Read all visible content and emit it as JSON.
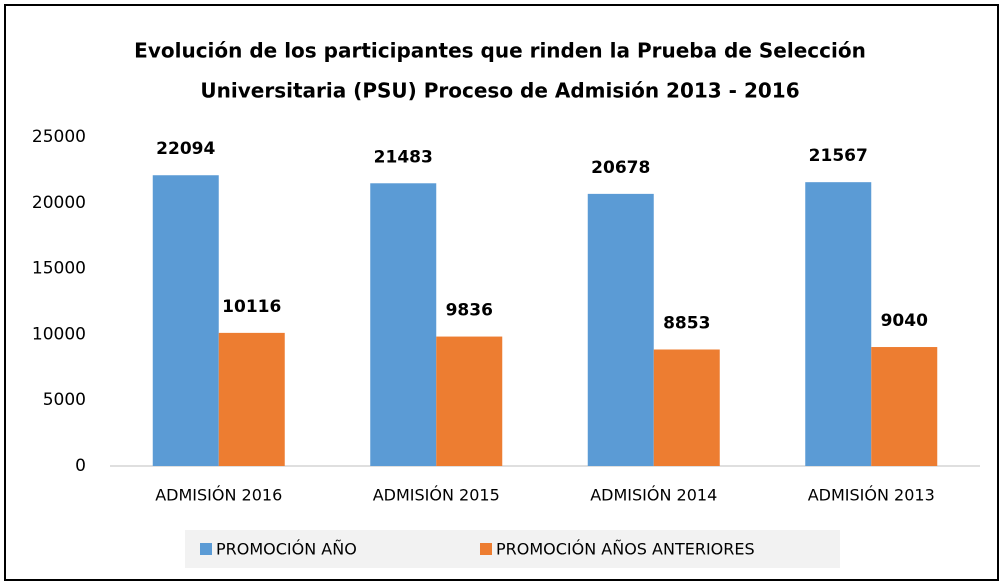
{
  "chart_data": {
    "type": "bar",
    "title": [
      "Evolución de los participantes que rinden la Prueba de Selección",
      "Universitaria (PSU) Proceso de Admisión 2013 - 2016"
    ],
    "categories": [
      "ADMISIÓN 2016",
      "ADMISIÓN 2015",
      "ADMISIÓN 2014",
      "ADMISIÓN 2013"
    ],
    "series": [
      {
        "name": "PROMOCIÓN AÑO",
        "color": "#5b9bd5",
        "values": [
          22094,
          21483,
          20678,
          21567
        ]
      },
      {
        "name": "PROMOCIÓN AÑOS ANTERIORES",
        "color": "#ed7d31",
        "values": [
          10116,
          9836,
          8853,
          9040
        ]
      }
    ],
    "ylim": [
      0,
      25000
    ],
    "yticks": [
      0,
      5000,
      10000,
      15000,
      20000,
      25000
    ],
    "grid": false,
    "legend": "bottom"
  }
}
